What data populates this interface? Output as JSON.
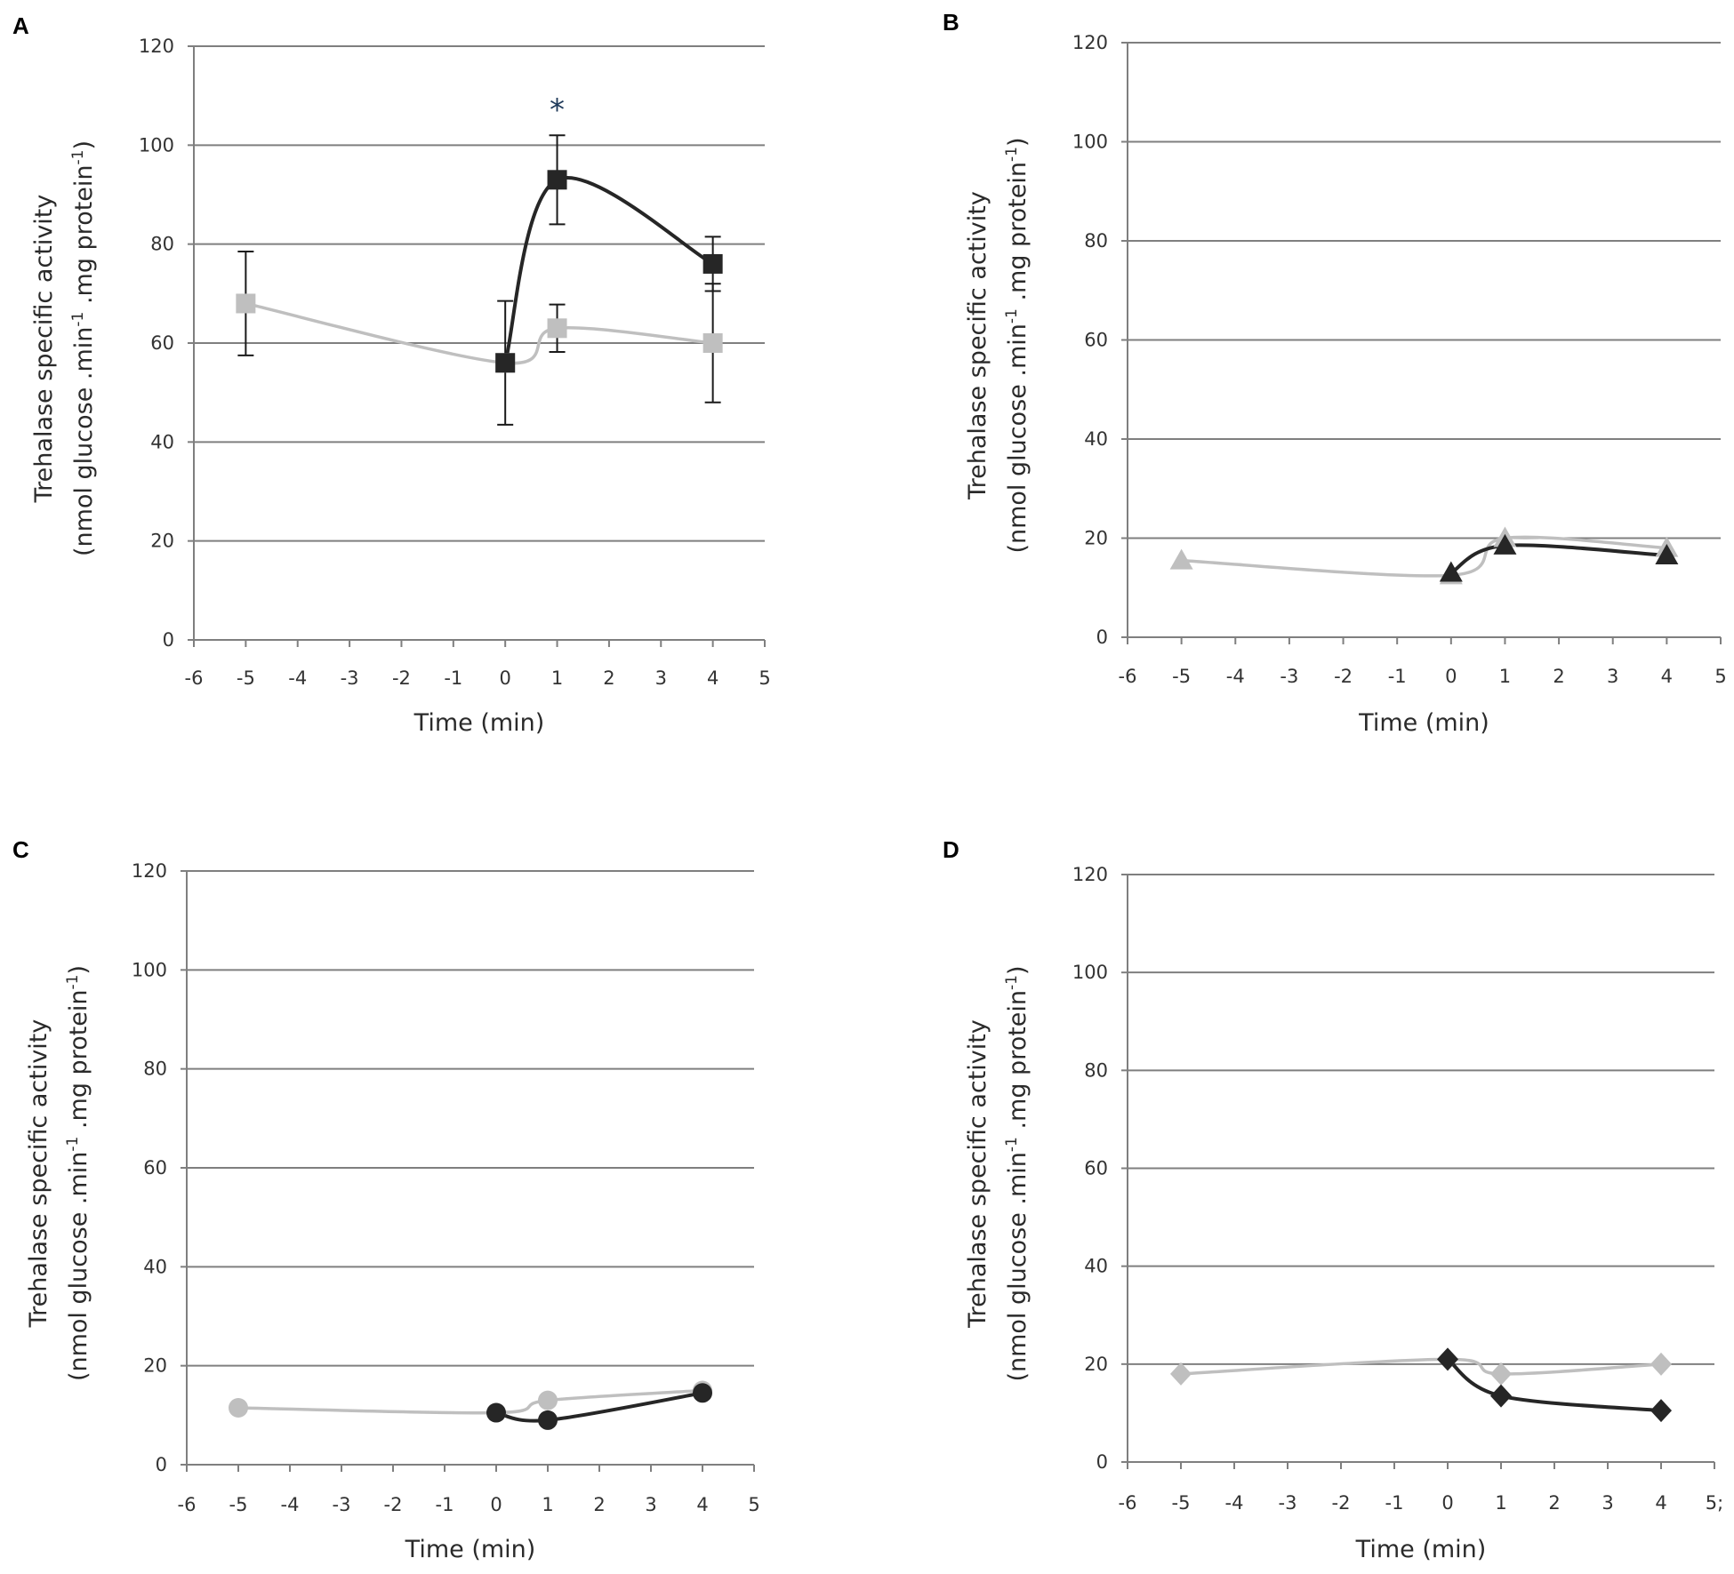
{
  "colors": {
    "dark_series": "#262626",
    "light_series": "#bfbfbf",
    "grid": "#7f7f7f",
    "error_bar": "#1a1a1a",
    "asterisk": "#1f3a5a"
  },
  "chart_data": [
    {
      "panel": "A",
      "type": "line",
      "marker": "square",
      "xlabel": "Time (min)",
      "ylabel_main": "Trehalase specific activity",
      "ylabel_units": {
        "prefix": "(nmol glucose .min",
        "sup1": "-1",
        "mid": " .mg protein",
        "sup2": "-1",
        "suffix": ")"
      },
      "xlim": [
        -6,
        5
      ],
      "ylim": [
        0,
        120
      ],
      "xticks": [
        "-6",
        "-5",
        "-4",
        "-3",
        "-2",
        "-1",
        "0",
        "1",
        "2",
        "3",
        "4",
        "5"
      ],
      "yticks": [
        "0",
        "20",
        "40",
        "60",
        "80",
        "100",
        "120"
      ],
      "annotation": {
        "text": "*",
        "x": 1,
        "y": 108
      },
      "series": [
        {
          "name": "light",
          "color": "#bfbfbf",
          "x": [
            -5,
            0,
            1,
            4
          ],
          "y": [
            68,
            56,
            63,
            60
          ],
          "err": [
            10.5,
            12.5,
            4.8,
            12
          ]
        },
        {
          "name": "dark",
          "color": "#262626",
          "x": [
            0,
            1,
            4
          ],
          "y": [
            56,
            93,
            76
          ],
          "err": [
            null,
            9,
            5.5
          ]
        }
      ]
    },
    {
      "panel": "B",
      "type": "line",
      "marker": "triangle",
      "xlabel": "Time (min)",
      "ylabel_main": "Trehalase specific activity",
      "ylabel_units": {
        "prefix": "(nmol glucose .min",
        "sup1": "-1",
        "mid": " .mg protein",
        "sup2": "-1",
        "suffix": ")"
      },
      "xlim": [
        -6,
        5
      ],
      "ylim": [
        0,
        120
      ],
      "xticks": [
        "-6",
        "-5",
        "-4",
        "-3",
        "-2",
        "-1",
        "0",
        "1",
        "2",
        "3",
        "4",
        "5"
      ],
      "yticks": [
        "0",
        "20",
        "40",
        "60",
        "80",
        "100",
        "120"
      ],
      "series": [
        {
          "name": "light",
          "color": "#bfbfbf",
          "x": [
            -5,
            0,
            1,
            4
          ],
          "y": [
            15.5,
            12.5,
            20,
            18
          ]
        },
        {
          "name": "dark",
          "color": "#262626",
          "x": [
            0,
            1,
            4
          ],
          "y": [
            13,
            18.5,
            16.5
          ]
        }
      ]
    },
    {
      "panel": "C",
      "type": "line",
      "marker": "circle",
      "xlabel": "Time (min)",
      "ylabel_main": "Trehalase specific activity",
      "ylabel_units": {
        "prefix": "(nmol glucose .min",
        "sup1": "-1",
        "mid": " .mg protein",
        "sup2": "-1",
        "suffix": ")"
      },
      "xlim": [
        -6,
        5
      ],
      "ylim": [
        0,
        120
      ],
      "xticks": [
        "-6",
        "-5",
        "-4",
        "-3",
        "-2",
        "-1",
        "0",
        "1",
        "2",
        "3",
        "4",
        "5"
      ],
      "yticks": [
        "0",
        "20",
        "40",
        "60",
        "80",
        "100",
        "120"
      ],
      "series": [
        {
          "name": "light",
          "color": "#bfbfbf",
          "x": [
            -5,
            0,
            1,
            4
          ],
          "y": [
            11.5,
            10.5,
            13,
            15
          ]
        },
        {
          "name": "dark",
          "color": "#262626",
          "x": [
            0,
            1,
            4
          ],
          "y": [
            10.5,
            9,
            14.5
          ]
        }
      ]
    },
    {
      "panel": "D",
      "type": "line",
      "marker": "diamond",
      "xlabel": "Time (min)",
      "ylabel_main": "Trehalase specific activity",
      "ylabel_units": {
        "prefix": "(nmol glucose .min",
        "sup1": "-1",
        "mid": " .mg protein",
        "sup2": "-1",
        "suffix": ")"
      },
      "xlim": [
        -6,
        5
      ],
      "ylim": [
        0,
        120
      ],
      "xticks": [
        "-6",
        "-5",
        "-4",
        "-3",
        "-2",
        "-1",
        "0",
        "1",
        "2",
        "3",
        "4",
        "5;"
      ],
      "yticks": [
        "0",
        "20",
        "40",
        "60",
        "80",
        "100",
        "120"
      ],
      "series": [
        {
          "name": "light",
          "color": "#bfbfbf",
          "x": [
            -5,
            0,
            1,
            4
          ],
          "y": [
            18,
            21,
            18,
            20
          ]
        },
        {
          "name": "dark",
          "color": "#262626",
          "x": [
            0,
            1,
            4
          ],
          "y": [
            21,
            13.5,
            10.5
          ]
        }
      ]
    }
  ]
}
